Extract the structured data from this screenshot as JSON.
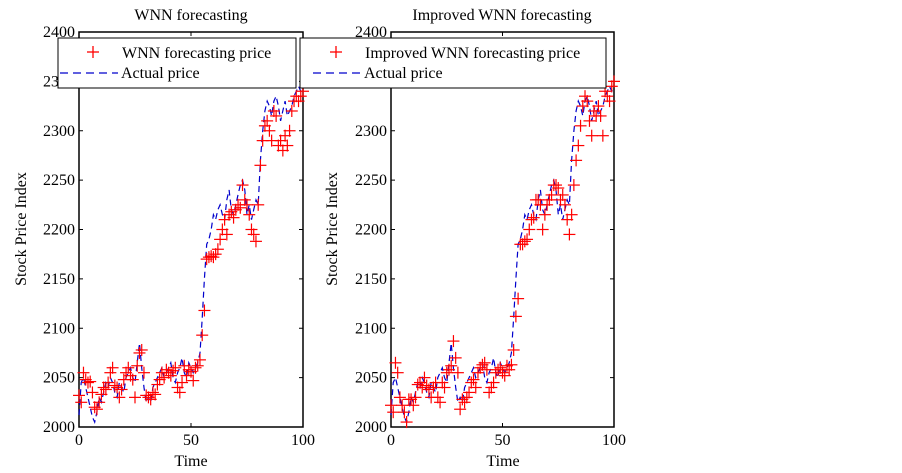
{
  "chart_data": [
    {
      "type": "line",
      "title": "WNN forecasting",
      "xlabel": "Time",
      "ylabel": "Stock Price Index",
      "xlim": [
        0,
        100
      ],
      "ylim": [
        2000,
        2400
      ],
      "xticks": [
        0,
        50,
        100
      ],
      "xtick_labels": [
        "0",
        "50",
        "100"
      ],
      "yticks": [
        2000,
        2050,
        2100,
        2150,
        2200,
        2250,
        2300,
        2350,
        2400
      ],
      "ytick_labels": [
        "2000",
        "2050",
        "2100",
        "2150",
        "2200",
        "2250",
        "2300",
        "2350",
        "2400"
      ],
      "grid": false,
      "legend_position": "top",
      "series": [
        {
          "name": "WNN forecasting price",
          "style": "marker-plus",
          "color": "#ff0000",
          "x": [
            0,
            1,
            2,
            3,
            4,
            5,
            6,
            7,
            8,
            9,
            10,
            11,
            12,
            13,
            14,
            15,
            16,
            17,
            18,
            19,
            20,
            21,
            22,
            23,
            24,
            25,
            26,
            27,
            28,
            29,
            30,
            31,
            32,
            33,
            34,
            35,
            36,
            37,
            38,
            39,
            40,
            41,
            42,
            43,
            44,
            45,
            46,
            47,
            48,
            49,
            50,
            51,
            52,
            53,
            54,
            55,
            56,
            57,
            58,
            59,
            60,
            61,
            62,
            63,
            64,
            65,
            66,
            67,
            68,
            69,
            70,
            71,
            72,
            73,
            74,
            75,
            76,
            77,
            78,
            79,
            80,
            81,
            82,
            83,
            84,
            85,
            86,
            87,
            88,
            89,
            90,
            91,
            92,
            93,
            94,
            95,
            96,
            97,
            98,
            99,
            100
          ],
          "values": [
            2032,
            2025,
            2055,
            2048,
            2045,
            2046,
            2035,
            2020,
            2018,
            2025,
            2033,
            2040,
            2038,
            2045,
            2055,
            2060,
            2042,
            2040,
            2030,
            2038,
            2048,
            2055,
            2060,
            2052,
            2048,
            2030,
            2062,
            2075,
            2078,
            2055,
            2032,
            2030,
            2028,
            2035,
            2033,
            2043,
            2048,
            2055,
            2050,
            2058,
            2055,
            2052,
            2057,
            2060,
            2040,
            2035,
            2045,
            2062,
            2052,
            2058,
            2056,
            2047,
            2060,
            2062,
            2068,
            2093,
            2118,
            2170,
            2172,
            2173,
            2172,
            2175,
            2180,
            2190,
            2200,
            2210,
            2195,
            2215,
            2218,
            2212,
            2220,
            2225,
            2222,
            2245,
            2230,
            2225,
            2215,
            2200,
            2195,
            2188,
            2225,
            2265,
            2290,
            2305,
            2310,
            2300,
            2290,
            2320,
            2315,
            2285,
            2290,
            2280,
            2295,
            2285,
            2300,
            2320,
            2330,
            2335,
            2330,
            2335,
            2340
          ]
        },
        {
          "name": "Actual price",
          "style": "dashed-line",
          "color": "#0000cc",
          "x": [
            0,
            1,
            2,
            3,
            4,
            5,
            6,
            7,
            8,
            9,
            10,
            11,
            12,
            13,
            14,
            15,
            16,
            17,
            18,
            19,
            20,
            21,
            22,
            23,
            24,
            25,
            26,
            27,
            28,
            29,
            30,
            31,
            32,
            33,
            34,
            35,
            36,
            37,
            38,
            39,
            40,
            41,
            42,
            43,
            44,
            45,
            46,
            47,
            48,
            49,
            50,
            51,
            52,
            53,
            54,
            55,
            56,
            57,
            58,
            59,
            60,
            61,
            62,
            63,
            64,
            65,
            66,
            67,
            68,
            69,
            70,
            71,
            72,
            73,
            74,
            75,
            76,
            77,
            78,
            79,
            80,
            81,
            82,
            83,
            84,
            85,
            86,
            87,
            88,
            89,
            90,
            91,
            92,
            93,
            94,
            95,
            96,
            97,
            98,
            99,
            100
          ],
          "values": [
            2012,
            2045,
            2050,
            2040,
            2030,
            2020,
            2010,
            2005,
            2015,
            2030,
            2025,
            2035,
            2045,
            2040,
            2050,
            2045,
            2035,
            2030,
            2045,
            2040,
            2035,
            2050,
            2055,
            2060,
            2050,
            2045,
            2065,
            2085,
            2060,
            2040,
            2025,
            2030,
            2025,
            2040,
            2045,
            2050,
            2055,
            2060,
            2050,
            2055,
            2060,
            2065,
            2050,
            2045,
            2055,
            2060,
            2070,
            2055,
            2050,
            2065,
            2060,
            2055,
            2060,
            2065,
            2075,
            2110,
            2150,
            2185,
            2190,
            2200,
            2215,
            2210,
            2220,
            2225,
            2215,
            2210,
            2230,
            2240,
            2220,
            2215,
            2225,
            2235,
            2245,
            2250,
            2240,
            2215,
            2225,
            2210,
            2220,
            2230,
            2225,
            2270,
            2300,
            2320,
            2330,
            2325,
            2315,
            2330,
            2335,
            2325,
            2310,
            2320,
            2330,
            2315,
            2320,
            2325,
            2335,
            2340,
            2345,
            2340,
            2345
          ]
        }
      ]
    },
    {
      "type": "line",
      "title": "Improved WNN forecasting",
      "xlabel": "Time",
      "ylabel": "Stock Price Index",
      "xlim": [
        0,
        100
      ],
      "ylim": [
        2000,
        2400
      ],
      "xticks": [
        0,
        50,
        100
      ],
      "xtick_labels": [
        "0",
        "50",
        "100"
      ],
      "yticks": [
        2000,
        2050,
        2100,
        2150,
        2200,
        2250,
        2300,
        2350,
        2400
      ],
      "ytick_labels": [
        "2000",
        "2050",
        "2100",
        "2150",
        "2200",
        "2250",
        "2300",
        "2350",
        "2400"
      ],
      "grid": false,
      "legend_position": "top",
      "series": [
        {
          "name": "Improved WNN forecasting price",
          "style": "marker-plus",
          "color": "#ff0000",
          "x": [
            0,
            1,
            2,
            3,
            4,
            5,
            6,
            7,
            8,
            9,
            10,
            11,
            12,
            13,
            14,
            15,
            16,
            17,
            18,
            19,
            20,
            21,
            22,
            23,
            24,
            25,
            26,
            27,
            28,
            29,
            30,
            31,
            32,
            33,
            34,
            35,
            36,
            37,
            38,
            39,
            40,
            41,
            42,
            43,
            44,
            45,
            46,
            47,
            48,
            49,
            50,
            51,
            52,
            53,
            54,
            55,
            56,
            57,
            58,
            59,
            60,
            61,
            62,
            63,
            64,
            65,
            66,
            67,
            68,
            69,
            70,
            71,
            72,
            73,
            74,
            75,
            76,
            77,
            78,
            79,
            80,
            81,
            82,
            83,
            84,
            85,
            86,
            87,
            88,
            89,
            90,
            91,
            92,
            93,
            94,
            95,
            96,
            97,
            98,
            99,
            100
          ],
          "values": [
            2022,
            2015,
            2065,
            2055,
            2030,
            2022,
            2015,
            2005,
            2028,
            2028,
            2022,
            2030,
            2043,
            2045,
            2040,
            2050,
            2042,
            2038,
            2030,
            2040,
            2045,
            2030,
            2025,
            2045,
            2040,
            2055,
            2058,
            2062,
            2087,
            2070,
            2055,
            2018,
            2028,
            2025,
            2030,
            2035,
            2045,
            2048,
            2040,
            2055,
            2060,
            2063,
            2065,
            2058,
            2035,
            2040,
            2045,
            2055,
            2058,
            2060,
            2055,
            2052,
            2062,
            2058,
            2063,
            2078,
            2112,
            2130,
            2185,
            2185,
            2188,
            2190,
            2200,
            2210,
            2212,
            2230,
            2230,
            2225,
            2200,
            2215,
            2225,
            2230,
            2235,
            2245,
            2245,
            2242,
            2230,
            2235,
            2225,
            2210,
            2195,
            2215,
            2245,
            2270,
            2285,
            2305,
            2325,
            2335,
            2330,
            2310,
            2295,
            2320,
            2315,
            2325,
            2315,
            2295,
            2340,
            2335,
            2330,
            2345,
            2350
          ]
        },
        {
          "name": "Actual price",
          "style": "dashed-line",
          "color": "#0000cc",
          "x": [
            0,
            1,
            2,
            3,
            4,
            5,
            6,
            7,
            8,
            9,
            10,
            11,
            12,
            13,
            14,
            15,
            16,
            17,
            18,
            19,
            20,
            21,
            22,
            23,
            24,
            25,
            26,
            27,
            28,
            29,
            30,
            31,
            32,
            33,
            34,
            35,
            36,
            37,
            38,
            39,
            40,
            41,
            42,
            43,
            44,
            45,
            46,
            47,
            48,
            49,
            50,
            51,
            52,
            53,
            54,
            55,
            56,
            57,
            58,
            59,
            60,
            61,
            62,
            63,
            64,
            65,
            66,
            67,
            68,
            69,
            70,
            71,
            72,
            73,
            74,
            75,
            76,
            77,
            78,
            79,
            80,
            81,
            82,
            83,
            84,
            85,
            86,
            87,
            88,
            89,
            90,
            91,
            92,
            93,
            94,
            95,
            96,
            97,
            98,
            99,
            100
          ],
          "values": [
            2012,
            2045,
            2050,
            2040,
            2030,
            2020,
            2010,
            2005,
            2015,
            2030,
            2025,
            2035,
            2045,
            2040,
            2050,
            2045,
            2035,
            2030,
            2045,
            2040,
            2035,
            2050,
            2055,
            2060,
            2050,
            2045,
            2065,
            2085,
            2060,
            2040,
            2025,
            2030,
            2025,
            2040,
            2045,
            2050,
            2055,
            2060,
            2050,
            2055,
            2060,
            2065,
            2050,
            2045,
            2055,
            2060,
            2070,
            2055,
            2050,
            2065,
            2060,
            2055,
            2060,
            2065,
            2075,
            2110,
            2150,
            2185,
            2190,
            2200,
            2215,
            2210,
            2220,
            2225,
            2215,
            2210,
            2230,
            2240,
            2220,
            2215,
            2225,
            2235,
            2245,
            2250,
            2240,
            2215,
            2225,
            2210,
            2220,
            2230,
            2225,
            2270,
            2300,
            2320,
            2330,
            2325,
            2315,
            2330,
            2335,
            2325,
            2310,
            2320,
            2330,
            2315,
            2320,
            2325,
            2335,
            2340,
            2345,
            2340,
            2345
          ]
        }
      ]
    }
  ]
}
